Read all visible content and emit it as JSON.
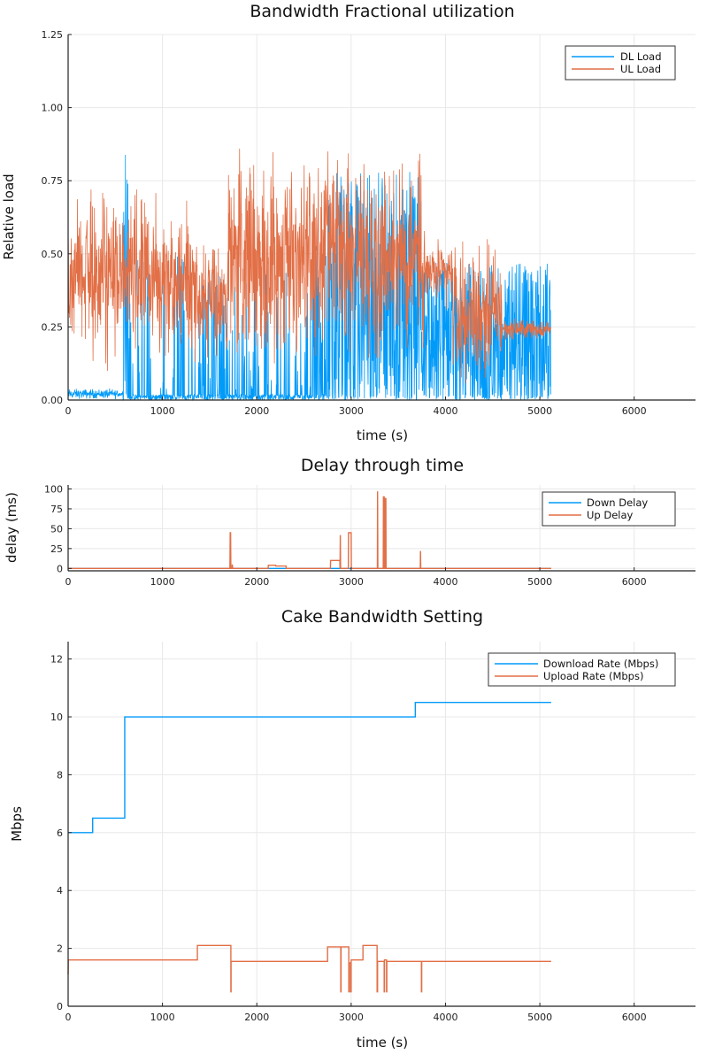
{
  "chart_data": [
    {
      "type": "line",
      "title": "Bandwidth Fractional utilization",
      "xlabel": "time (s)",
      "ylabel": "Relative load",
      "xlim": [
        0,
        6650
      ],
      "ylim": [
        0,
        1.25
      ],
      "xticks": [
        0,
        1000,
        2000,
        3000,
        4000,
        5000,
        6000
      ],
      "yticks": [
        "0.00",
        "0.25",
        "0.50",
        "0.75",
        "1.00",
        "1.25"
      ],
      "grid": true,
      "legend": "top-right",
      "series": [
        {
          "name": "DL Load",
          "color": "#009af9",
          "segments_start_end_min_max_density": [
            [
              0,
              580,
              0,
              0.04,
              1
            ],
            [
              580,
              640,
              0,
              0.88,
              0.5
            ],
            [
              640,
              1380,
              0,
              0.5,
              0.15
            ],
            [
              1380,
              1700,
              0,
              0.45,
              0.3
            ],
            [
              1700,
              2600,
              0,
              0.45,
              0.2
            ],
            [
              2600,
              2750,
              0,
              0.55,
              0.6
            ],
            [
              2750,
              3750,
              0,
              0.78,
              0.9
            ],
            [
              3750,
              4100,
              0,
              0.47,
              0.9
            ],
            [
              4100,
              4600,
              0,
              0.47,
              0.8
            ],
            [
              4600,
              5120,
              0,
              0.47,
              0.9
            ]
          ]
        },
        {
          "name": "UL Load",
          "color": "#e26f46",
          "segments_start_end_min_max_density": [
            [
              0,
              1370,
              0.1,
              0.72,
              1
            ],
            [
              1370,
              1700,
              0.1,
              0.55,
              1
            ],
            [
              1700,
              2700,
              0.05,
              0.86,
              1
            ],
            [
              2700,
              3780,
              0.1,
              0.85,
              1
            ],
            [
              3780,
              4080,
              0.3,
              0.55,
              1
            ],
            [
              4080,
              4600,
              0.03,
              0.55,
              1
            ],
            [
              4600,
              5120,
              0.2,
              0.28,
              1
            ]
          ]
        }
      ]
    },
    {
      "type": "line",
      "title": "Delay through time",
      "xlabel": "",
      "ylabel": "delay (ms)",
      "xlim": [
        0,
        6650
      ],
      "ylim": [
        -3,
        105
      ],
      "xticks": [
        0,
        1000,
        2000,
        3000,
        4000,
        5000,
        6000
      ],
      "yticks": [
        0,
        25,
        50,
        75,
        100
      ],
      "grid": true,
      "legend": "top-right",
      "series": [
        {
          "name": "Down Delay",
          "color": "#009af9",
          "x": [
            0,
            5120
          ],
          "y": [
            0,
            0
          ]
        },
        {
          "name": "Up Delay",
          "color": "#e26f46",
          "x": [
            0,
            1715,
            1718,
            1722,
            1725,
            1738,
            1740,
            1745,
            2120,
            2122,
            2200,
            2202,
            2310,
            2312,
            2780,
            2782,
            2880,
            2882,
            2885,
            2888,
            2970,
            2972,
            3000,
            3002,
            3278,
            3280,
            3283,
            3340,
            3342,
            3350,
            3352,
            3360,
            3362,
            3368,
            3370,
            3733,
            3735,
            3738,
            5120
          ],
          "y": [
            0,
            0,
            45,
            45,
            0,
            0,
            5,
            0,
            0,
            4,
            4,
            3,
            3,
            0,
            0,
            10,
            10,
            0,
            42,
            0,
            0,
            45,
            45,
            0,
            0,
            97,
            0,
            0,
            90,
            90,
            0,
            0,
            88,
            88,
            0,
            0,
            22,
            0,
            0
          ]
        }
      ]
    },
    {
      "type": "line",
      "title": "Cake Bandwidth Setting",
      "xlabel": "time (s)",
      "ylabel": "Mbps",
      "xlim": [
        0,
        6650
      ],
      "ylim": [
        0,
        12.6
      ],
      "xticks": [
        0,
        1000,
        2000,
        3000,
        4000,
        5000,
        6000
      ],
      "yticks": [
        0,
        2,
        4,
        6,
        8,
        10,
        12
      ],
      "grid": true,
      "legend": "top-right",
      "series": [
        {
          "name": "Download Rate (Mbps)",
          "color": "#009af9",
          "x": [
            0,
            260,
            260,
            600,
            600,
            3680,
            3680,
            5120
          ],
          "y": [
            6,
            6,
            6.5,
            6.5,
            10,
            10,
            10.5,
            10.5
          ]
        },
        {
          "name": "Upload Rate (Mbps)",
          "color": "#e26f46",
          "x": [
            0,
            2,
            2,
            1370,
            1370,
            1725,
            1725,
            1727,
            1727,
            2750,
            2750,
            2890,
            2890,
            2893,
            2893,
            2910,
            2910,
            2975,
            2975,
            2980,
            2980,
            2995,
            2995,
            3000,
            3000,
            3125,
            3125,
            3275,
            3275,
            3280,
            3280,
            3350,
            3350,
            3353,
            3353,
            3375,
            3375,
            3378,
            3378,
            3745,
            3745,
            3748,
            3748,
            5120
          ],
          "y": [
            1.1,
            1.6,
            1.6,
            1.6,
            2.1,
            2.1,
            0.5,
            0.5,
            1.55,
            1.55,
            2.05,
            2.05,
            0.5,
            0.5,
            2.05,
            2.05,
            2.05,
            2.05,
            0.5,
            0.5,
            1.5,
            1.5,
            0.5,
            0.5,
            1.6,
            1.6,
            2.1,
            2.1,
            0.5,
            0.5,
            1.55,
            1.55,
            0.5,
            0.5,
            1.6,
            1.6,
            0.5,
            0.5,
            1.55,
            1.55,
            0.5,
            0.5,
            1.55,
            1.55
          ]
        }
      ]
    }
  ]
}
